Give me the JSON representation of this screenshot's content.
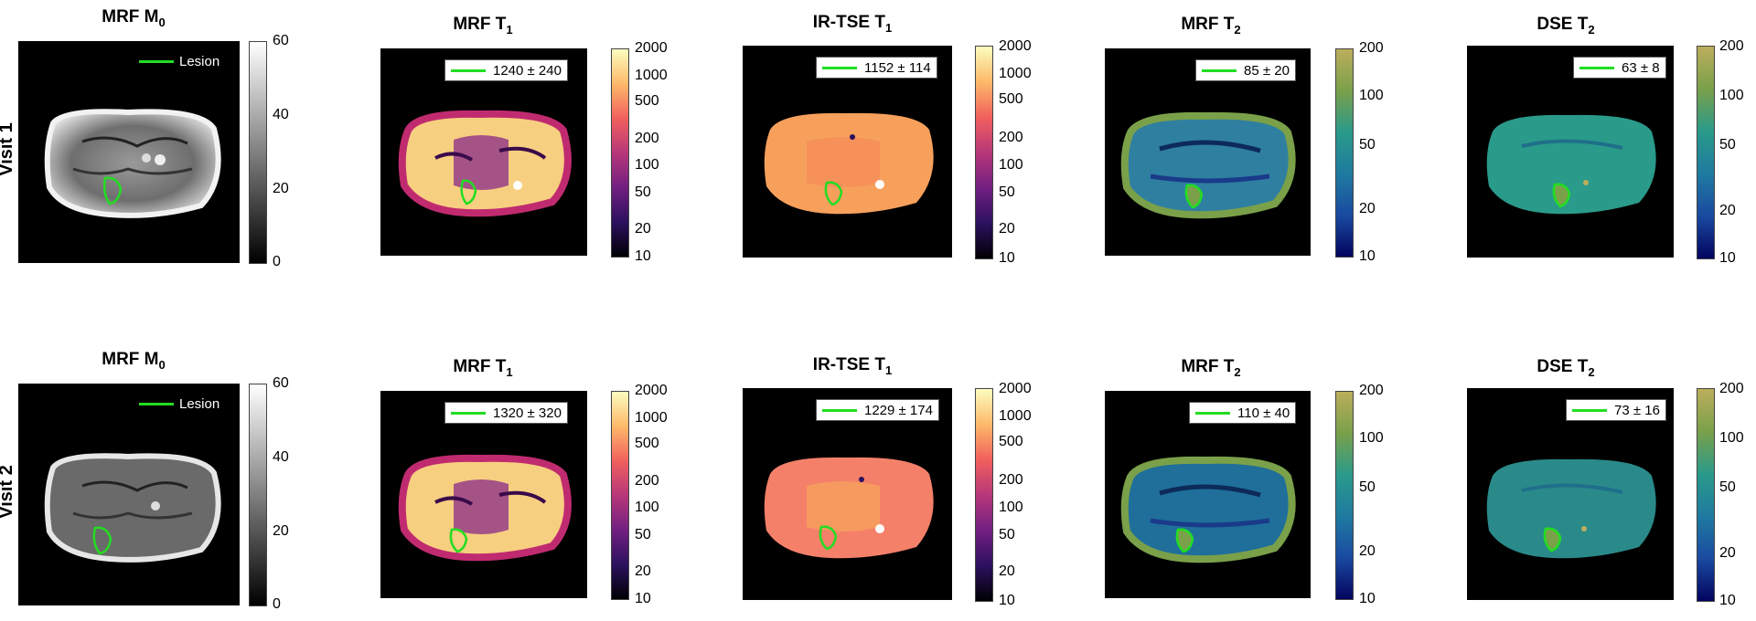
{
  "rows": [
    {
      "label": "Visit 1",
      "panels": [
        {
          "title_main": "MRF M",
          "title_sub": "0",
          "legend": "Lesion",
          "ticks": [
            "60",
            "40",
            "20",
            "0"
          ],
          "cmap": "gray"
        },
        {
          "title_main": "MRF T",
          "title_sub": "1",
          "legend": "1240 ± 240",
          "ticks": [
            "2000",
            "1000",
            "500",
            "200",
            "100",
            "50",
            "20",
            "10"
          ],
          "cmap": "magma"
        },
        {
          "title_main": "IR-TSE T",
          "title_sub": "1",
          "legend": "1152 ± 114",
          "ticks": [
            "2000",
            "1000",
            "500",
            "200",
            "100",
            "50",
            "20",
            "10"
          ],
          "cmap": "magma"
        },
        {
          "title_main": "MRF T",
          "title_sub": "2",
          "legend": "85 ± 20",
          "ticks": [
            "200",
            "100",
            "50",
            "20",
            "10"
          ],
          "cmap": "navia"
        },
        {
          "title_main": "DSE T",
          "title_sub": "2",
          "legend": "63 ± 8",
          "ticks": [
            "200",
            "100",
            "50",
            "20",
            "10"
          ],
          "cmap": "navia"
        }
      ]
    },
    {
      "label": "Visit 2",
      "panels": [
        {
          "title_main": "MRF M",
          "title_sub": "0",
          "legend": "Lesion",
          "ticks": [
            "60",
            "40",
            "20",
            "0"
          ],
          "cmap": "gray"
        },
        {
          "title_main": "MRF T",
          "title_sub": "1",
          "legend": "1320 ± 320",
          "ticks": [
            "2000",
            "1000",
            "500",
            "200",
            "100",
            "50",
            "20",
            "10"
          ],
          "cmap": "magma"
        },
        {
          "title_main": "IR-TSE T",
          "title_sub": "1",
          "legend": "1229 ± 174",
          "ticks": [
            "2000",
            "1000",
            "500",
            "200",
            "100",
            "50",
            "20",
            "10"
          ],
          "cmap": "magma"
        },
        {
          "title_main": "MRF T",
          "title_sub": "2",
          "legend": "110 ± 40",
          "ticks": [
            "200",
            "100",
            "50",
            "20",
            "10"
          ],
          "cmap": "navia"
        },
        {
          "title_main": "DSE T",
          "title_sub": "2",
          "legend": "73 ± 16",
          "ticks": [
            "200",
            "100",
            "50",
            "20",
            "10"
          ],
          "cmap": "navia"
        }
      ]
    }
  ],
  "colors": {
    "lesion_outline": "#22dd22",
    "background": "#000000"
  }
}
